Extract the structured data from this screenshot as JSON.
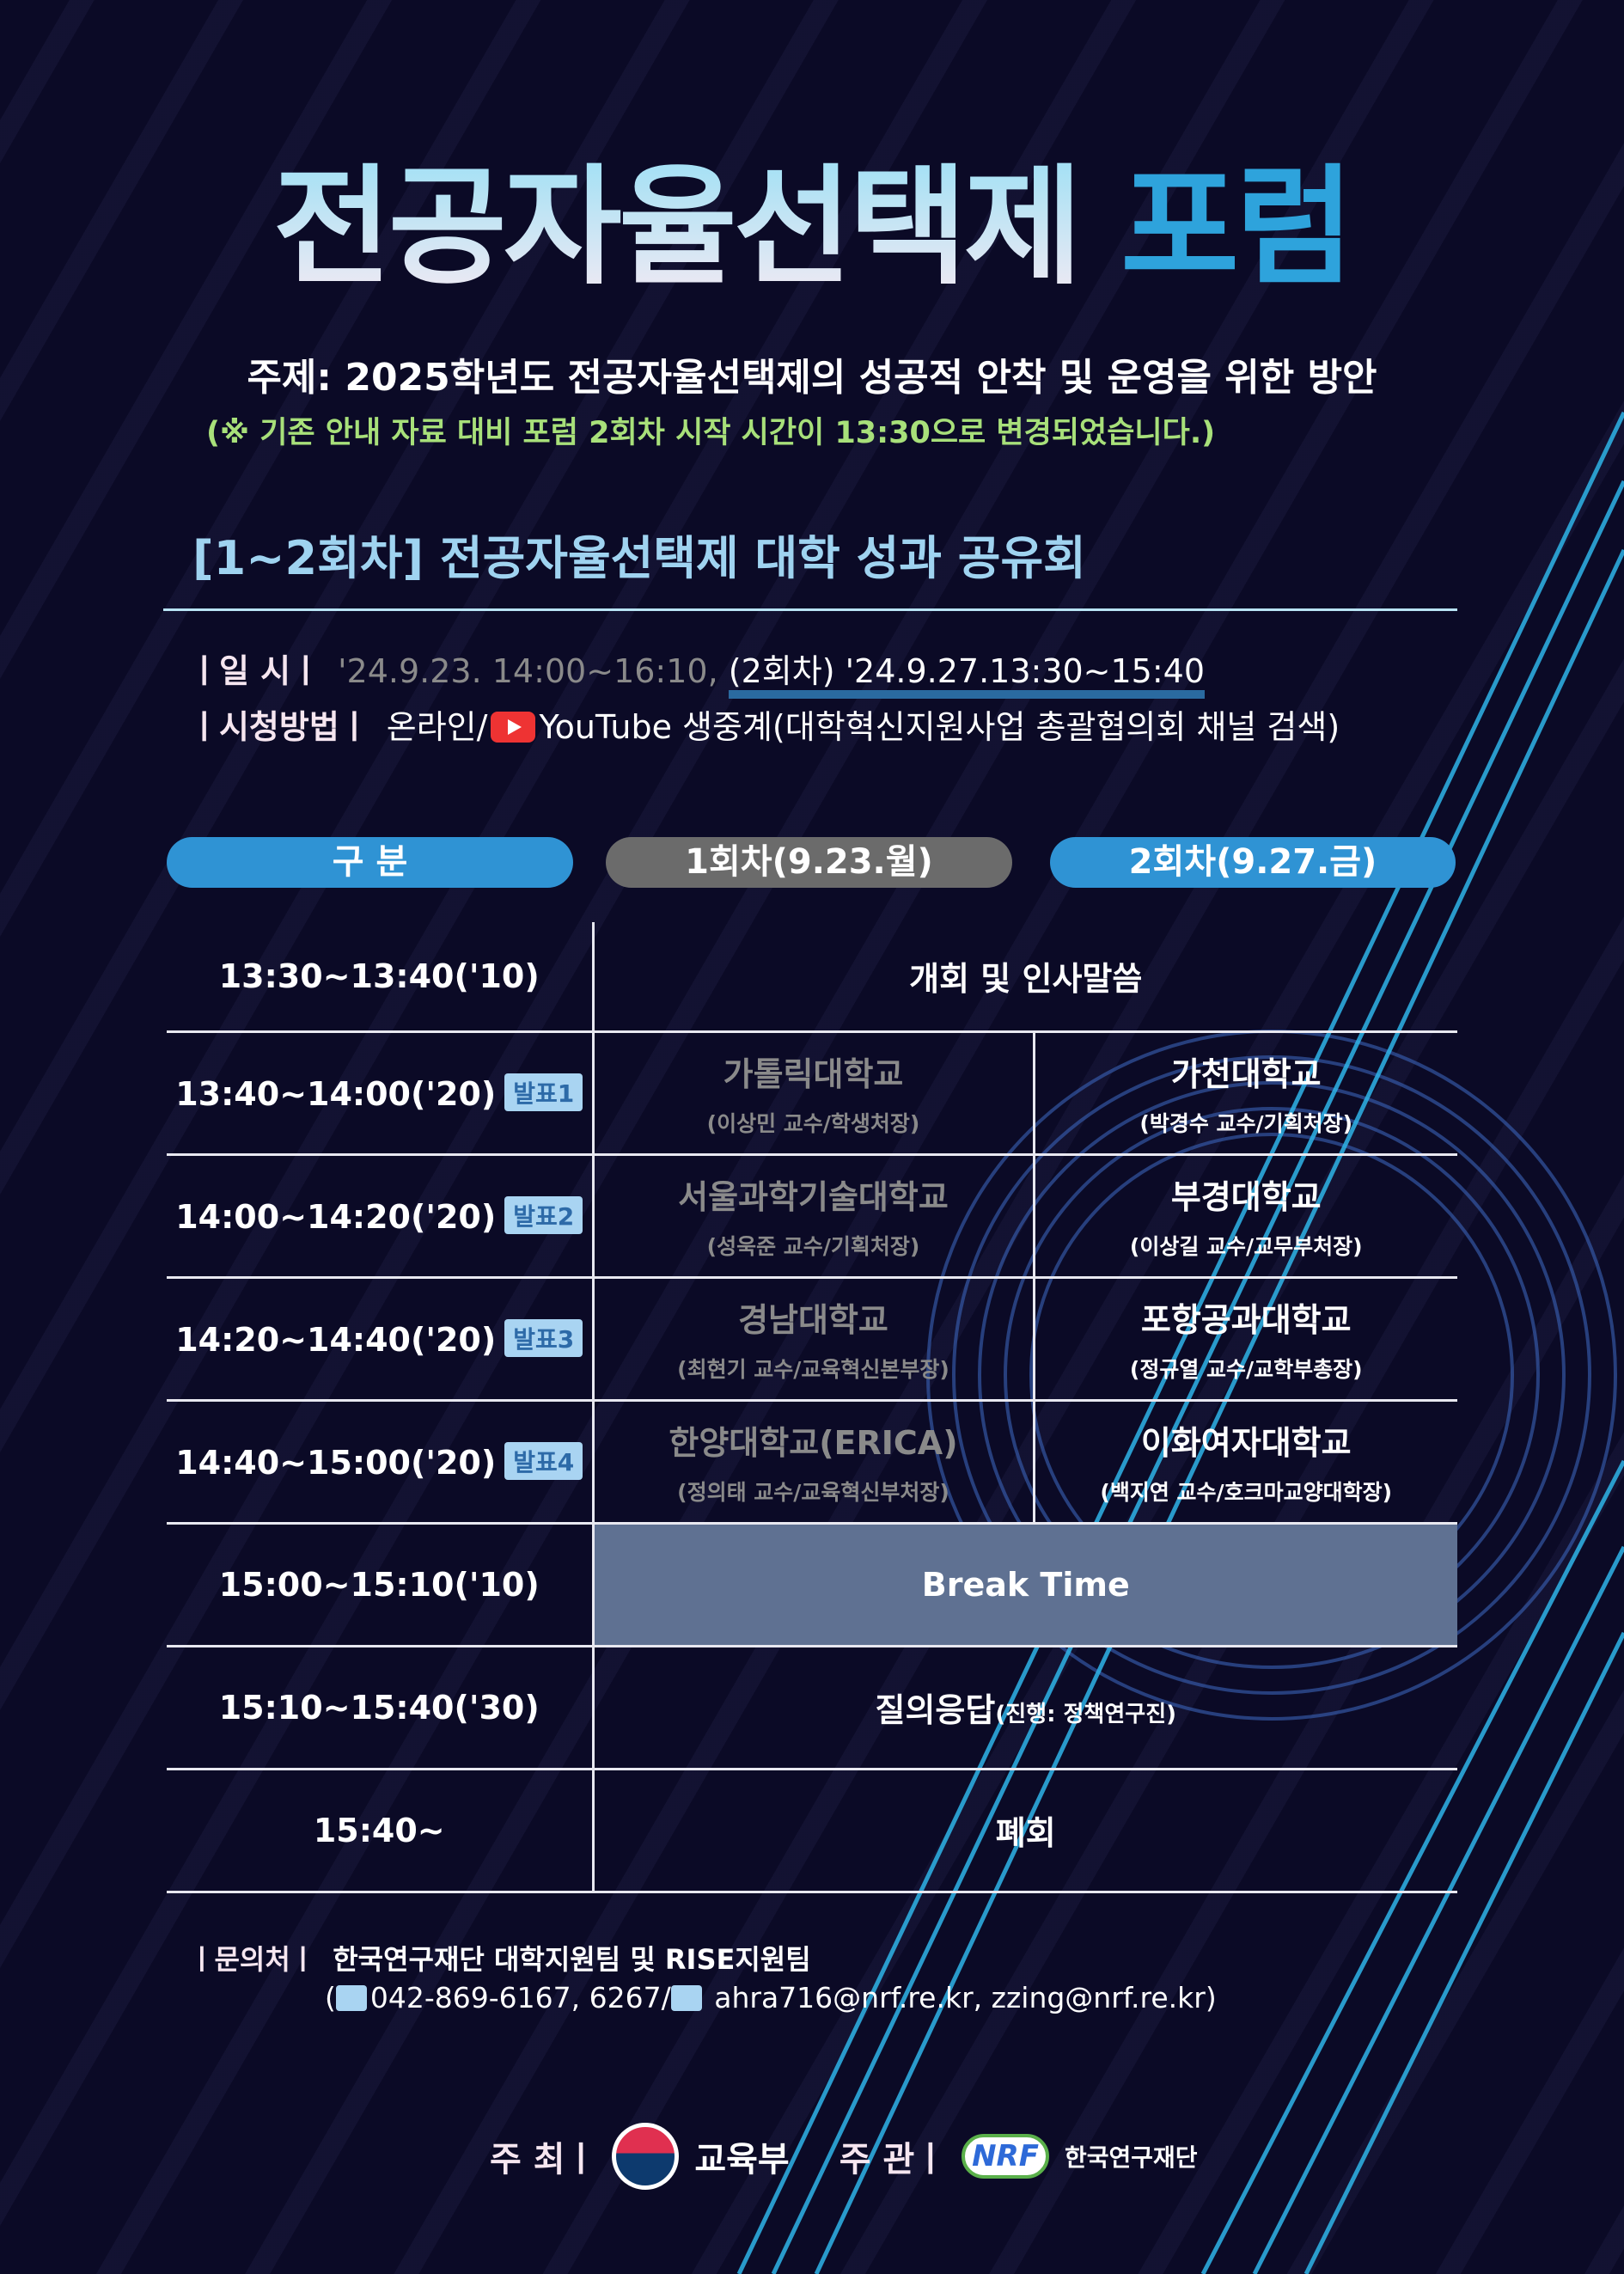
{
  "title": {
    "part1": "전공자율선택제",
    "part2": "포럼"
  },
  "topic": "주제: 2025학년도 전공자율선택제의 성공적 안착 및 운영을 위한 방안",
  "notice": "(※ 기존 안내 자료 대비 포럼 2회차 시작 시간이 13:30으로 변경되었습니다.)",
  "section": "[1~2회차] 전공자율선택제 대학 성과 공유회",
  "schedule": {
    "label": "ㅣ일  시ㅣ",
    "first": "'24.9.23. 14:00~16:10,",
    "second": "(2회차) '24.9.27.13:30~15:40"
  },
  "viewing": {
    "label": "ㅣ시청방법ㅣ",
    "prefix": "온라인/",
    "icon": "youtube-icon",
    "text": "YouTube 생중계(대학혁신지원사업 총괄협의회 채널 검색)"
  },
  "headers": {
    "category": "구  분",
    "session1": "1회차(9.23.월)",
    "session2": "2회차(9.27.금)"
  },
  "colors": {
    "accent": "#2ea3dc",
    "session1_header": "#6b6b6b",
    "break": "#5f7192",
    "background": "#0b0a26"
  },
  "rows": [
    {
      "time": "13:30~13:40('10)",
      "all": "개회 및 인사말씀"
    },
    {
      "time": "13:40~14:00('20)",
      "badge": "발표1",
      "s1": {
        "uni": "가톨릭대학교",
        "person": "(이상민 교수/학생처장)"
      },
      "s2": {
        "uni": "가천대학교",
        "person": "(박경수 교수/기획처장)"
      }
    },
    {
      "time": "14:00~14:20('20)",
      "badge": "발표2",
      "s1": {
        "uni": "서울과학기술대학교",
        "person": "(성욱준 교수/기획처장)"
      },
      "s2": {
        "uni": "부경대학교",
        "person": "(이상길 교수/교무부처장)"
      }
    },
    {
      "time": "14:20~14:40('20)",
      "badge": "발표3",
      "s1": {
        "uni": "경남대학교",
        "person": "(최현기 교수/교육혁신본부장)"
      },
      "s2": {
        "uni": "포항공과대학교",
        "person": "(정규열 교수/교학부총장)"
      }
    },
    {
      "time": "14:40~15:00('20)",
      "badge": "발표4",
      "s1": {
        "uni": "한양대학교(ERICA)",
        "person": "(정의태 교수/교육혁신부처장)"
      },
      "s2": {
        "uni": "이화여자대학교",
        "person": "(백지연 교수/호크마교양대학장)"
      }
    },
    {
      "time": "15:00~15:10('10)",
      "all": "Break Time"
    },
    {
      "time": "15:10~15:40('30)",
      "all": "질의응답",
      "note": "(진행: 정책연구진)"
    },
    {
      "time": "15:40~",
      "all": "폐회"
    }
  ],
  "contact": {
    "label": "ㅣ문의처ㅣ",
    "org": "한국연구재단 대학지원팀 및 RISE지원팀",
    "phone": "042-869-6167, 6267/",
    "email": "ahra716@nrf.re.kr, zzing@nrf.re.kr"
  },
  "footer": {
    "host_label": "주 최ㅣ",
    "host": "교육부",
    "organizer_label": "주 관ㅣ",
    "organizer_logo": "NRF",
    "organizer": "한국연구재단"
  }
}
